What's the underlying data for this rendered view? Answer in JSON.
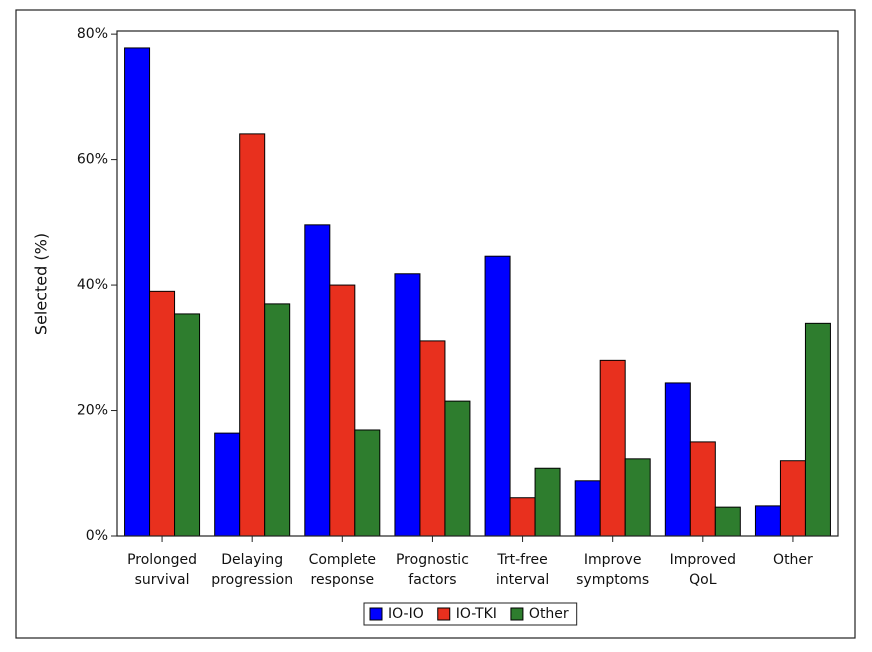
{
  "chart_data": {
    "type": "bar",
    "y_label": "Selected (%)",
    "categories": [
      [
        "Prolonged",
        "survival"
      ],
      [
        "Delaying",
        "progression"
      ],
      [
        "Complete",
        "response"
      ],
      [
        "Prognostic",
        "factors"
      ],
      [
        "Trt-free",
        "interval"
      ],
      [
        "Improve",
        "symptoms"
      ],
      [
        "Improved",
        "QoL"
      ],
      [
        "Other"
      ]
    ],
    "series": [
      {
        "name": "IO-IO",
        "color": "#0000ff",
        "values": [
          77.8,
          16.4,
          49.6,
          41.8,
          44.6,
          8.8,
          24.4,
          4.8
        ]
      },
      {
        "name": "IO-TKI",
        "color": "#e8301e",
        "values": [
          39.0,
          64.1,
          40.0,
          31.1,
          6.1,
          28.0,
          15.0,
          12.0
        ]
      },
      {
        "name": "Other",
        "color": "#2e7d2e",
        "values": [
          35.4,
          37.0,
          16.9,
          21.5,
          10.8,
          12.3,
          4.6,
          33.9
        ]
      }
    ],
    "ylim": [
      0,
      80.5
    ],
    "yticks": [
      {
        "value": 0,
        "label": "0%"
      },
      {
        "value": 20,
        "label": "20%"
      },
      {
        "value": 40,
        "label": "40%"
      },
      {
        "value": 60,
        "label": "60%"
      },
      {
        "value": 80,
        "label": "80%"
      }
    ]
  }
}
